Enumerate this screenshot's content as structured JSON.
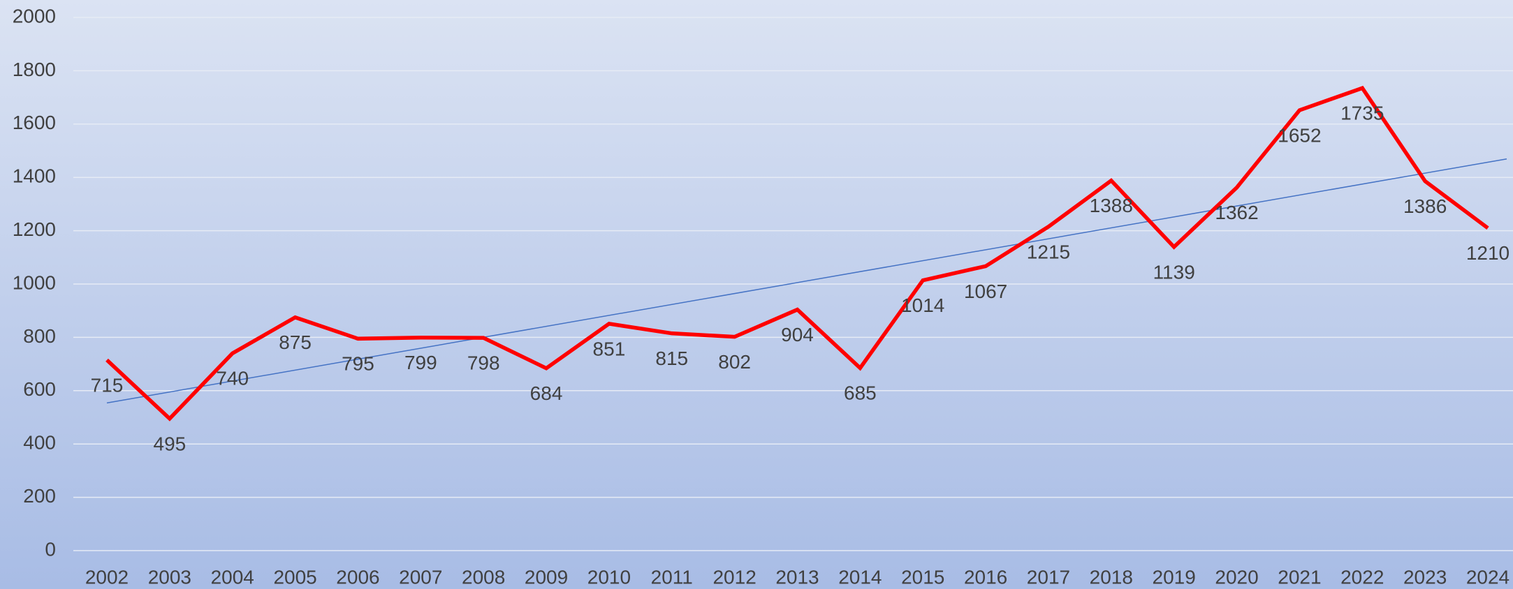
{
  "chart_data": {
    "type": "line",
    "categories": [
      "2002",
      "2003",
      "2004",
      "2005",
      "2006",
      "2007",
      "2008",
      "2009",
      "2010",
      "2011",
      "2012",
      "2013",
      "2014",
      "2015",
      "2016",
      "2017",
      "2018",
      "2019",
      "2020",
      "2021",
      "2022",
      "2023",
      "2024"
    ],
    "values": [
      715,
      495,
      740,
      875,
      795,
      799,
      798,
      684,
      851,
      815,
      802,
      904,
      685,
      1014,
      1067,
      1215,
      1388,
      1139,
      1362,
      1652,
      1735,
      1386,
      1210
    ],
    "color": "#ff0000",
    "trendline": "linear",
    "trendline_color": "#4472c4",
    "ylim": [
      0,
      2000
    ],
    "yticks": [
      0,
      200,
      400,
      600,
      800,
      1000,
      1200,
      1400,
      1600,
      1800,
      2000
    ],
    "grid": true
  }
}
